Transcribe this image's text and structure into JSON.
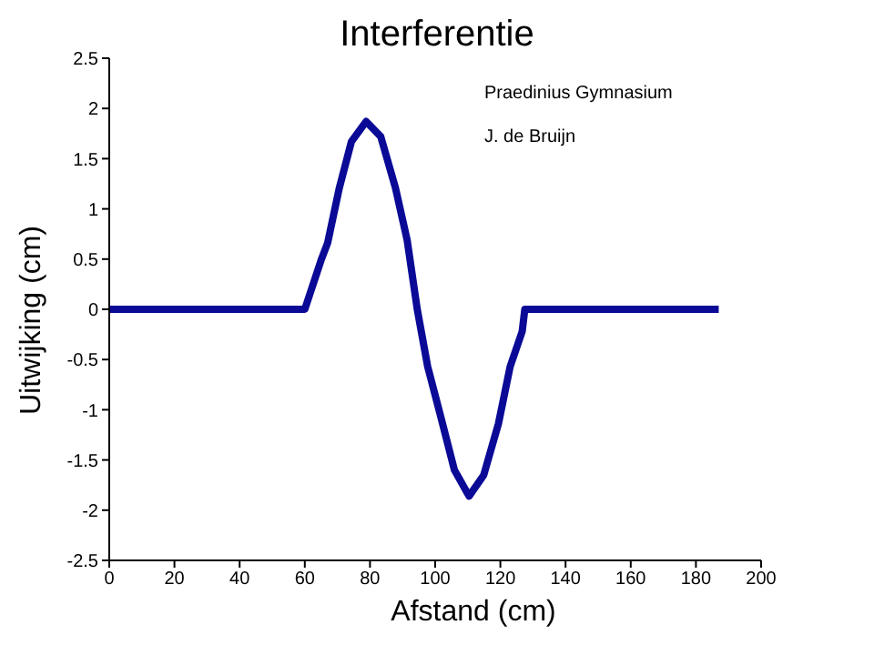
{
  "chart_data": {
    "type": "line",
    "title": "Interferentie",
    "xlabel": "Afstand (cm)",
    "ylabel": "Uitwijking (cm)",
    "annotations": [
      "Praedinius Gymnasium",
      "J. de Bruijn"
    ],
    "x": [
      0,
      60,
      65,
      67,
      70.6,
      74.3,
      78.8,
      83.3,
      87.8,
      91.4,
      94.5,
      97.7,
      101.4,
      105.9,
      110.4,
      114.9,
      119.4,
      123,
      126.7,
      127.5,
      187
    ],
    "series": [
      {
        "color": "#0a0a96",
        "values": [
          0,
          0,
          0.49,
          0.66,
          1.21,
          1.67,
          1.87,
          1.72,
          1.21,
          0.69,
          0,
          -0.57,
          -1.03,
          -1.6,
          -1.86,
          -1.65,
          -1.14,
          -0.57,
          -0.22,
          0,
          0
        ]
      }
    ],
    "xlim": [
      0,
      200
    ],
    "xticks": [
      0,
      20,
      40,
      60,
      80,
      100,
      120,
      140,
      160,
      180,
      200
    ],
    "ylim": [
      -2.5,
      2.5
    ],
    "yticks": [
      -2.5,
      -2,
      -1.5,
      -1,
      -0.5,
      0,
      0.5,
      1,
      1.5,
      2,
      2.5
    ],
    "grid": false,
    "legend": false,
    "marker": "none",
    "line_style": "solid"
  }
}
